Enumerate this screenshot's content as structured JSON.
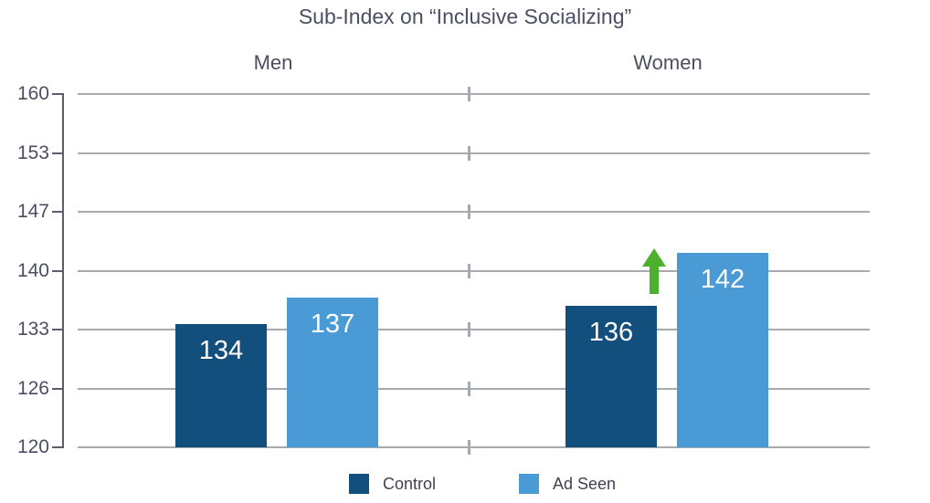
{
  "title": "Sub-Index on “Inclusive Socializing”",
  "colors": {
    "control": "#134f7d",
    "ad_seen": "#4a9bd5",
    "arrow_green": "#4caf2d",
    "gridline": "#a6a9ae",
    "axis": "#5a5f6e",
    "text": "#4a4f61",
    "bar_value_label": "#ffffff"
  },
  "legend": [
    {
      "label": "Control",
      "color": "#134f7d"
    },
    {
      "label": "Ad Seen",
      "color": "#4a9bd5"
    }
  ],
  "chart_data": {
    "type": "bar",
    "title": "Sub-Index on “Inclusive Socializing”",
    "categories": [
      "Men",
      "Women"
    ],
    "series": [
      {
        "name": "Control",
        "values": [
          134,
          136
        ],
        "color": "#134f7d"
      },
      {
        "name": "Ad Seen",
        "values": [
          137,
          142
        ],
        "color": "#4a9bd5"
      }
    ],
    "y_ticks": [
      160,
      153,
      147,
      140,
      133,
      126,
      120
    ],
    "ylim": [
      120,
      160
    ],
    "xlabel": "",
    "ylabel": "",
    "grid": true,
    "legend_position": "bottom",
    "bar_value_labels": [
      [
        134,
        136
      ],
      [
        137,
        142
      ]
    ],
    "annotations": [
      {
        "type": "up-arrow",
        "group": "Women",
        "meaning": "increase",
        "color": "#4caf2d"
      }
    ]
  }
}
